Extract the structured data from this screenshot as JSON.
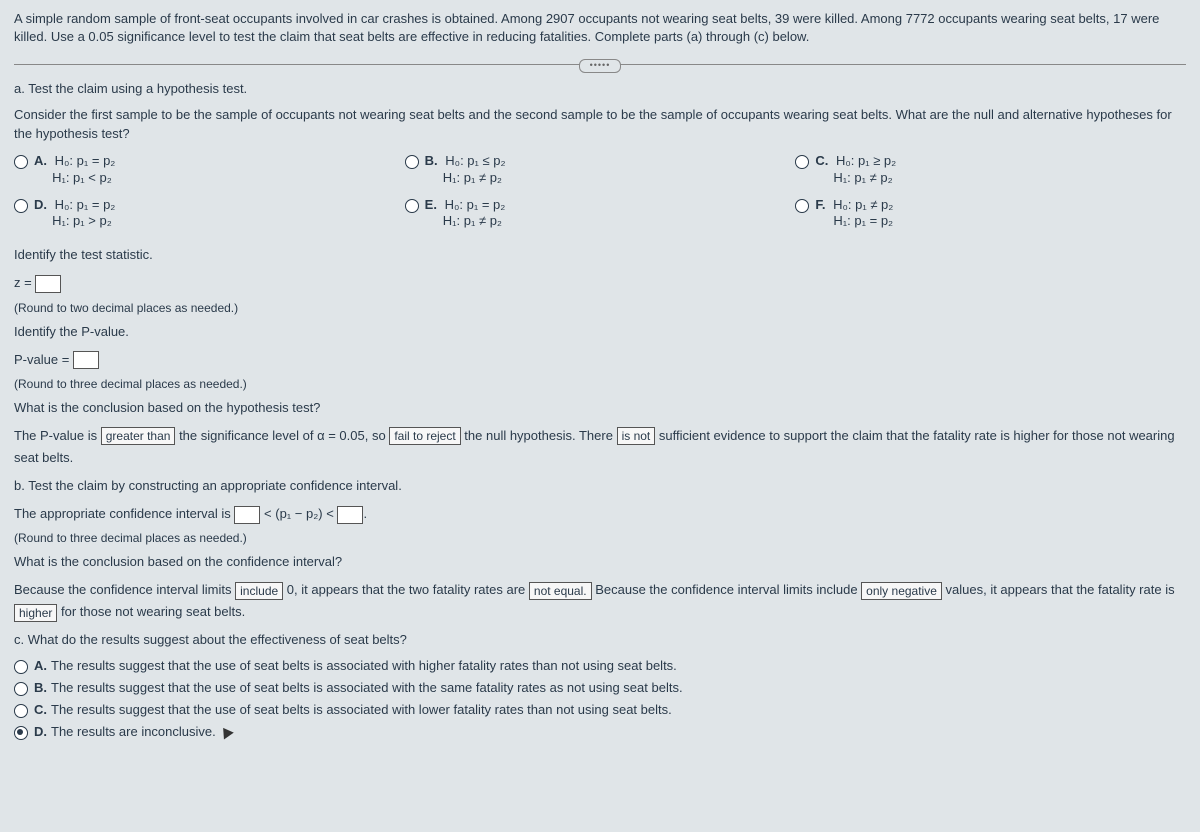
{
  "intro": "A simple random sample of front-seat occupants involved in car crashes is obtained. Among 2907 occupants not wearing seat belts, 39 were killed. Among 7772 occupants wearing seat belts, 17 were killed. Use a 0.05 significance level to test the claim that seat belts are effective in reducing fatalities. Complete parts (a) through (c) below.",
  "partA": {
    "title": "a. Test the claim using a hypothesis test.",
    "prompt": "Consider the first sample to be the sample of occupants not wearing seat belts and the second sample to be the sample of occupants wearing seat belts. What are the null and alternative hypotheses for the hypothesis test?",
    "options": {
      "A": {
        "h0": "H₀: p₁ = p₂",
        "h1": "H₁: p₁ < p₂"
      },
      "B": {
        "h0": "H₀: p₁ ≤ p₂",
        "h1": "H₁: p₁ ≠ p₂"
      },
      "C": {
        "h0": "H₀: p₁ ≥ p₂",
        "h1": "H₁: p₁ ≠ p₂"
      },
      "D": {
        "h0": "H₀: p₁ = p₂",
        "h1": "H₁: p₁ > p₂"
      },
      "E": {
        "h0": "H₀: p₁ = p₂",
        "h1": "H₁: p₁ ≠ p₂"
      },
      "F": {
        "h0": "H₀: p₁ ≠ p₂",
        "h1": "H₁: p₁ = p₂"
      }
    },
    "identifyStat": "Identify the test statistic.",
    "zLabel": "z =",
    "roundZ": "(Round to two decimal places as needed.)",
    "identifyP": "Identify the P-value.",
    "pLabel": "P-value =",
    "roundP": "(Round to three decimal places as needed.)",
    "conclQ": "What is the conclusion based on the hypothesis test?",
    "concl": {
      "t1": "The P-value is",
      "sel1": "greater than",
      "t2": "the significance level of α = 0.05, so",
      "sel2": "fail to reject",
      "t3": "the null hypothesis. There",
      "sel3": "is not",
      "t4": "sufficient evidence to support the claim that the fatality rate is higher for those not wearing seat belts."
    }
  },
  "partB": {
    "title": "b. Test the claim by constructing an appropriate confidence interval.",
    "ci": {
      "t1": "The appropriate confidence interval is",
      "mid": "< (p₁ − p₂) <",
      "round": "(Round to three decimal places as needed.)"
    },
    "conclQ": "What is the conclusion based on the confidence interval?",
    "concl": {
      "t1": "Because the confidence interval limits",
      "sel1": "include",
      "t2": "0, it appears that the two fatality rates are",
      "sel2": "not equal.",
      "t3": "Because the confidence interval limits include",
      "sel3": "only negative",
      "t4": "values, it appears that the fatality rate is",
      "sel4": "higher",
      "t5": "for those not wearing seat belts."
    }
  },
  "partC": {
    "title": "c. What do the results suggest about the effectiveness of seat belts?",
    "options": {
      "A": "The results suggest that the use of seat belts is associated with higher fatality rates than not using seat belts.",
      "B": "The results suggest that the use of seat belts is associated with the same fatality rates as not using seat belts.",
      "C": "The results suggest that the use of seat belts is associated with lower fatality rates than not using seat belts.",
      "D": "The results are inconclusive."
    },
    "selected": "D"
  }
}
